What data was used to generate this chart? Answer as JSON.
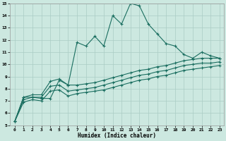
{
  "xlabel": "Humidex (Indice chaleur)",
  "bg_color": "#cce8e0",
  "grid_color": "#aaccc4",
  "line_color": "#1a6e60",
  "xlim": [
    -0.5,
    23.5
  ],
  "ylim": [
    5,
    15
  ],
  "xticks": [
    0,
    1,
    2,
    3,
    4,
    5,
    6,
    7,
    8,
    9,
    10,
    11,
    12,
    13,
    14,
    15,
    16,
    17,
    18,
    19,
    20,
    21,
    22,
    23
  ],
  "yticks": [
    5,
    6,
    7,
    8,
    9,
    10,
    11,
    12,
    13,
    14,
    15
  ],
  "line1_x": [
    0,
    1,
    2,
    3,
    4,
    5,
    6,
    7,
    8,
    9,
    10,
    11,
    12,
    13,
    14,
    15,
    16,
    17,
    18,
    19,
    20,
    21,
    22,
    23
  ],
  "line1_y": [
    5.3,
    7.3,
    7.3,
    7.2,
    7.2,
    8.7,
    8.3,
    11.8,
    11.5,
    12.3,
    11.5,
    14.0,
    13.3,
    15.0,
    14.8,
    13.3,
    12.5,
    11.7,
    11.5,
    10.8,
    10.5,
    11.0,
    10.7,
    10.5
  ],
  "line2_x": [
    0,
    1,
    2,
    3,
    4,
    5,
    6,
    7,
    8,
    9,
    10,
    11,
    12,
    13,
    14,
    15,
    16,
    17,
    18,
    19,
    20,
    21,
    22,
    23
  ],
  "line2_y": [
    5.3,
    7.3,
    7.5,
    7.5,
    8.6,
    8.8,
    8.3,
    8.3,
    8.4,
    8.5,
    8.7,
    8.9,
    9.1,
    9.3,
    9.5,
    9.6,
    9.8,
    9.9,
    10.1,
    10.3,
    10.4,
    10.5,
    10.5,
    10.5
  ],
  "line3_x": [
    0,
    1,
    2,
    3,
    4,
    5,
    6,
    7,
    8,
    9,
    10,
    11,
    12,
    13,
    14,
    15,
    16,
    17,
    18,
    19,
    20,
    21,
    22,
    23
  ],
  "line3_y": [
    5.3,
    7.1,
    7.3,
    7.3,
    8.2,
    8.3,
    7.8,
    7.9,
    8.0,
    8.1,
    8.3,
    8.5,
    8.7,
    8.9,
    9.1,
    9.2,
    9.4,
    9.5,
    9.7,
    9.9,
    10.0,
    10.1,
    10.1,
    10.2
  ],
  "line4_x": [
    0,
    1,
    2,
    3,
    4,
    5,
    6,
    7,
    8,
    9,
    10,
    11,
    12,
    13,
    14,
    15,
    16,
    17,
    18,
    19,
    20,
    21,
    22,
    23
  ],
  "line4_y": [
    5.3,
    6.9,
    7.1,
    7.0,
    7.8,
    7.9,
    7.4,
    7.6,
    7.7,
    7.8,
    7.9,
    8.1,
    8.3,
    8.5,
    8.7,
    8.8,
    9.0,
    9.1,
    9.3,
    9.5,
    9.6,
    9.7,
    9.8,
    9.9
  ]
}
